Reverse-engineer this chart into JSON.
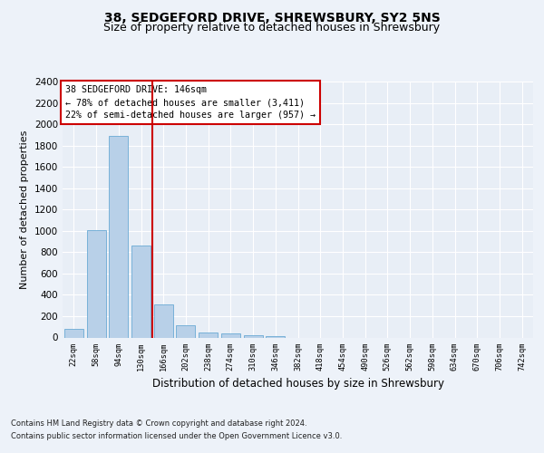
{
  "title1": "38, SEDGEFORD DRIVE, SHREWSBURY, SY2 5NS",
  "title2": "Size of property relative to detached houses in Shrewsbury",
  "xlabel": "Distribution of detached houses by size in Shrewsbury",
  "ylabel": "Number of detached properties",
  "categories": [
    "22sqm",
    "58sqm",
    "94sqm",
    "130sqm",
    "166sqm",
    "202sqm",
    "238sqm",
    "274sqm",
    "310sqm",
    "346sqm",
    "382sqm",
    "418sqm",
    "454sqm",
    "490sqm",
    "526sqm",
    "562sqm",
    "598sqm",
    "634sqm",
    "670sqm",
    "706sqm",
    "742sqm"
  ],
  "values": [
    80,
    1010,
    1890,
    860,
    310,
    115,
    50,
    42,
    25,
    12,
    0,
    0,
    0,
    0,
    0,
    0,
    0,
    0,
    0,
    0,
    0
  ],
  "bar_color": "#b8d0e8",
  "bar_edge_color": "#6aaad4",
  "vline_x": 3.5,
  "vline_color": "#cc0000",
  "ylim": [
    0,
    2400
  ],
  "yticks": [
    0,
    200,
    400,
    600,
    800,
    1000,
    1200,
    1400,
    1600,
    1800,
    2000,
    2200,
    2400
  ],
  "annotation_title": "38 SEDGEFORD DRIVE: 146sqm",
  "annotation_line1": "← 78% of detached houses are smaller (3,411)",
  "annotation_line2": "22% of semi-detached houses are larger (957) →",
  "annotation_box_color": "#cc0000",
  "footnote1": "Contains HM Land Registry data © Crown copyright and database right 2024.",
  "footnote2": "Contains public sector information licensed under the Open Government Licence v3.0.",
  "bg_color": "#edf2f9",
  "plot_bg_color": "#e8eef6",
  "grid_color": "#ffffff",
  "title1_fontsize": 10,
  "title2_fontsize": 9,
  "xlabel_fontsize": 8.5,
  "ylabel_fontsize": 8
}
